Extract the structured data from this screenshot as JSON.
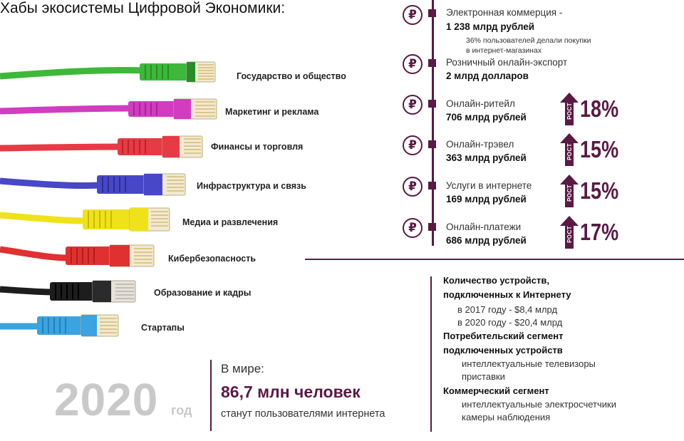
{
  "title": "Хабы экосистемы Цифровой Экономики:",
  "hubs": [
    {
      "label": "Государство и общество",
      "color": "#3db83a",
      "dark": "#2a8c28"
    },
    {
      "label": "Маркетинг и реклама",
      "color": "#d23cc0",
      "dark": "#a32695"
    },
    {
      "label": "Финансы и торговля",
      "color": "#e63a44",
      "dark": "#b82530"
    },
    {
      "label": "Инфраструктура и связь",
      "color": "#4747c8",
      "dark": "#2e2e94"
    },
    {
      "label": "Медиа и развлечения",
      "color": "#f0e21a",
      "dark": "#c7b80c"
    },
    {
      "label": "Кибербезопасность",
      "color": "#e03030",
      "dark": "#b01f1f"
    },
    {
      "label": "Образование и кадры",
      "color": "#1d1d1d",
      "dark": "#000000"
    },
    {
      "label": "Стартапы",
      "color": "#3aa3e0",
      "dark": "#2481b8"
    }
  ],
  "market": [
    {
      "name": "Электронная коммерция -",
      "value": "1 238 млрд рублей",
      "note1": "36% пользователей делали покупки",
      "note2": "в интернет-магазинах"
    },
    {
      "name": "Розничный онлайн-экспорт",
      "value": "2 млрд долларов"
    },
    {
      "name": "Онлайн-ритейл",
      "value": "706 млрд рублей",
      "growth": "18%"
    },
    {
      "name": "Онлайн-трэвел",
      "value": "363 млрд рублей",
      "growth": "15%"
    },
    {
      "name": "Услуги в интернете",
      "value": "169 млрд рублей",
      "growth": "15%"
    },
    {
      "name": "Онлайн-платежи",
      "value": "686 млрд рублей",
      "growth": "17%"
    }
  ],
  "rub_symbol": "₽",
  "rost": "РОСТ",
  "devices": {
    "h1a": "Количество устройств,",
    "h1b": "подключенных к Интернету",
    "i1": "в 2017 году - $8,4 млрд",
    "i2": "в 2020 году - $20,4 млрд",
    "h2a": "Потребительский сегмент",
    "h2b": "подключенных устройств",
    "i3": "интеллектуальные телевизоры",
    "i4": "приставки",
    "h3": "Коммерческий сегмент",
    "i5": "интеллектуальные электросчетчики",
    "i6": "камеры наблюдения"
  },
  "world": {
    "year": "2020",
    "god": "год",
    "line1": "В мире:",
    "line2": "86,7 млн человек",
    "line3": "станут пользователями интернета"
  },
  "accent_color": "#5a1a45"
}
